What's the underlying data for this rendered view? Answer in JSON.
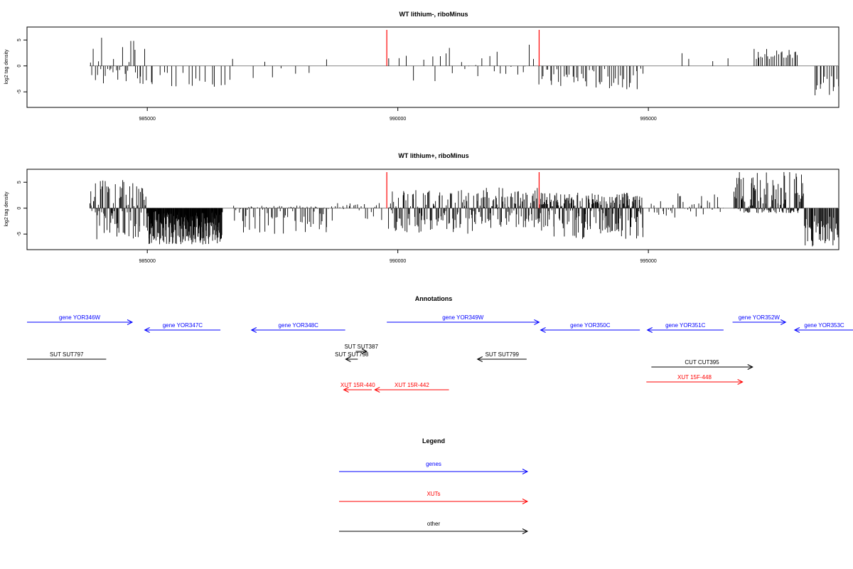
{
  "chart_data": [
    {
      "type": "bar",
      "title": "WT lithium-, riboMinus",
      "ylabel": "log2 tag density",
      "xlim": [
        982600,
        998800
      ],
      "ylim": [
        -8,
        7.5
      ],
      "xticks": [
        985000,
        990000,
        995000
      ],
      "xtick_labels": [
        "985000",
        "990000",
        "995000"
      ],
      "yticks": [
        -5,
        0,
        5
      ],
      "ytick_labels": [
        "-5",
        "0",
        "5"
      ],
      "markers": {
        "color": "#ff0000",
        "x": [
          989780,
          992820
        ]
      },
      "density_segments": [
        {
          "start": 983850,
          "end": 985000,
          "n": 34,
          "min": -3.5,
          "max": 5.6
        },
        {
          "start": 985000,
          "end": 986700,
          "n": 18,
          "min": -4.0,
          "max": -0.8
        },
        {
          "start": 986700,
          "end": 988600,
          "n": 8,
          "min": -2.5,
          "max": 3.0
        },
        {
          "start": 989800,
          "end": 990700,
          "n": 6,
          "min": -4.0,
          "max": 2.2
        },
        {
          "start": 990700,
          "end": 992800,
          "n": 22,
          "min": -3.0,
          "max": 4.8
        },
        {
          "start": 992800,
          "end": 994900,
          "n": 48,
          "min": -4.5,
          "max": -0.5
        },
        {
          "start": 995500,
          "end": 996700,
          "n": 4,
          "min": 0.8,
          "max": 2.6
        },
        {
          "start": 997100,
          "end": 998000,
          "n": 26,
          "min": 1.0,
          "max": 3.4
        },
        {
          "start": 998300,
          "end": 998800,
          "n": 14,
          "min": -6.0,
          "max": -1.0
        }
      ]
    },
    {
      "type": "bar",
      "title": "WT lithium+, riboMinus",
      "ylabel": "log2 tag density",
      "xlim": [
        982600,
        998800
      ],
      "ylim": [
        -8,
        7.5
      ],
      "xticks": [
        985000,
        990000,
        995000
      ],
      "xtick_labels": [
        "985000",
        "990000",
        "995000"
      ],
      "yticks": [
        -5,
        0,
        5
      ],
      "ytick_labels": [
        "-5",
        "0",
        "5"
      ],
      "markers": {
        "color": "#ff0000",
        "x": [
          989780,
          992820
        ]
      },
      "density_segments": [
        {
          "start": 983850,
          "end": 985000,
          "n": 90,
          "min": -6.0,
          "max": 5.5
        },
        {
          "start": 985000,
          "end": 986500,
          "n": 220,
          "min": -7.0,
          "max": -0.5
        },
        {
          "start": 986700,
          "end": 988600,
          "n": 80,
          "min": -5.0,
          "max": 0.5
        },
        {
          "start": 988600,
          "end": 989700,
          "n": 25,
          "min": -2.5,
          "max": 1.0
        },
        {
          "start": 989800,
          "end": 991500,
          "n": 110,
          "min": -5.0,
          "max": 3.5
        },
        {
          "start": 991500,
          "end": 992800,
          "n": 100,
          "min": -4.0,
          "max": 4.0
        },
        {
          "start": 992800,
          "end": 994900,
          "n": 220,
          "min": -6.0,
          "max": 3.0
        },
        {
          "start": 995000,
          "end": 996500,
          "n": 40,
          "min": -2.0,
          "max": 3.0
        },
        {
          "start": 996700,
          "end": 998100,
          "n": 120,
          "min": -1.0,
          "max": 7.0
        },
        {
          "start": 998100,
          "end": 998800,
          "n": 45,
          "min": -7.5,
          "max": -1.0
        }
      ]
    },
    {
      "type": "diagram",
      "title": "Annotations",
      "features": [
        {
          "label": "gene YOR346W",
          "color": "#0000ff",
          "dir": "right",
          "start": 982600,
          "end": 984700,
          "row": 0
        },
        {
          "label": "gene YOR347C",
          "color": "#0000ff",
          "dir": "left",
          "start": 984950,
          "end": 986460,
          "row": 1
        },
        {
          "label": "gene YOR348C",
          "color": "#0000ff",
          "dir": "left",
          "start": 987080,
          "end": 988950,
          "row": 1
        },
        {
          "label": "gene YOR349W",
          "color": "#0000ff",
          "dir": "right",
          "start": 989780,
          "end": 992820,
          "row": 0
        },
        {
          "label": "gene YOR350C",
          "color": "#0000ff",
          "dir": "left",
          "start": 992850,
          "end": 994830,
          "row": 1
        },
        {
          "label": "gene YOR351C",
          "color": "#0000ff",
          "dir": "left",
          "start": 994980,
          "end": 996500,
          "row": 1
        },
        {
          "label": "gene YOR352W",
          "color": "#0000ff",
          "dir": "right",
          "start": 996680,
          "end": 997740,
          "row": 0
        },
        {
          "label": "gene YOR353C",
          "color": "#0000ff",
          "dir": "left",
          "start": 997920,
          "end": 999100,
          "row": 1
        },
        {
          "label": "SUT SUT797",
          "color": "#000000",
          "dir": "none",
          "start": 982600,
          "end": 984180,
          "row": 3
        },
        {
          "label": "SUT SUT387",
          "color": "#000000",
          "dir": "right",
          "start": 989160,
          "end": 989380,
          "row": 2
        },
        {
          "label": "SUT SUT798",
          "color": "#000000",
          "dir": "left",
          "start": 988960,
          "end": 989200,
          "row": 3
        },
        {
          "label": "SUT SUT799",
          "color": "#000000",
          "dir": "left",
          "start": 991590,
          "end": 992570,
          "row": 3
        },
        {
          "label": "CUT CUT395",
          "color": "#000000",
          "dir": "right",
          "start": 995060,
          "end": 997080,
          "row": 4
        },
        {
          "label": "XUT 15R-440",
          "color": "#ff0000",
          "dir": "left",
          "start": 988920,
          "end": 989480,
          "row": 6
        },
        {
          "label": "XUT 15R-442",
          "color": "#ff0000",
          "dir": "left",
          "start": 989540,
          "end": 991020,
          "row": 6
        },
        {
          "label": "XUT 15F-448",
          "color": "#ff0000",
          "dir": "right",
          "start": 994960,
          "end": 996880,
          "row": 5
        }
      ]
    }
  ],
  "legend": {
    "title": "Legend",
    "items": [
      {
        "label": "genes",
        "color": "#0000ff"
      },
      {
        "label": "XUTs",
        "color": "#ff0000"
      },
      {
        "label": "other",
        "color": "#000000"
      }
    ]
  }
}
